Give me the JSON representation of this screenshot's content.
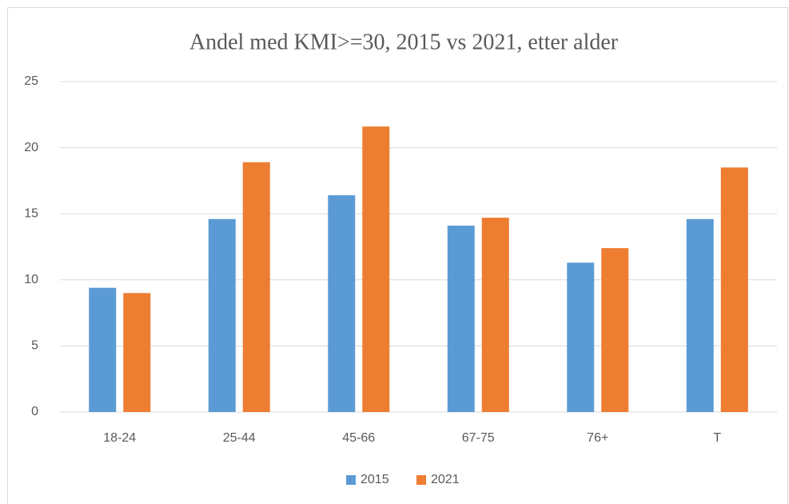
{
  "chart_data": {
    "type": "bar",
    "title": "Andel med KMI>=30, 2015 vs  2021, etter alder",
    "categories": [
      "18-24",
      "25-44",
      "45-66",
      "67-75",
      "76+",
      "T"
    ],
    "series": [
      {
        "name": "2015",
        "color": "#5b9bd5",
        "values": [
          9.4,
          14.6,
          16.4,
          14.1,
          11.3,
          14.6
        ]
      },
      {
        "name": "2021",
        "color": "#ed7d31",
        "values": [
          9.0,
          18.9,
          21.6,
          14.7,
          12.4,
          18.5
        ]
      }
    ],
    "ylim": [
      0,
      25
    ],
    "yticks": [
      0,
      5,
      10,
      15,
      20,
      25
    ],
    "grid": true,
    "legend": "bottom"
  }
}
